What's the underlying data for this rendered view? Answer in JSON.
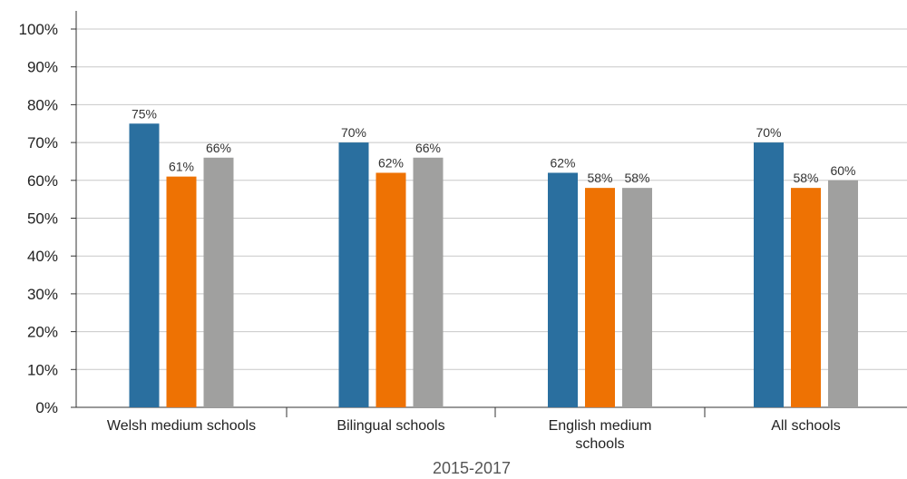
{
  "chart_data": {
    "type": "bar",
    "categories": [
      [
        "Welsh medium schools"
      ],
      [
        "Bilingual schools"
      ],
      [
        "English medium",
        "schools"
      ],
      [
        "All schools"
      ]
    ],
    "series": [
      {
        "values": [
          75,
          70,
          62,
          70
        ],
        "labels": [
          "75%",
          "70%",
          "62%",
          "70%"
        ],
        "color": "#2a6f9f"
      },
      {
        "values": [
          61,
          62,
          58,
          58
        ],
        "labels": [
          "61%",
          "62%",
          "58%",
          "58%"
        ],
        "color": "#ee7203"
      },
      {
        "values": [
          66,
          66,
          58,
          60
        ],
        "labels": [
          "66%",
          "66%",
          "58%",
          "60%"
        ],
        "color": "#a0a09f"
      }
    ],
    "xlabel": "2015-2017",
    "ylabel": "",
    "ylim": [
      0,
      100
    ],
    "yticks": [
      "0%",
      "10%",
      "20%",
      "30%",
      "40%",
      "50%",
      "60%",
      "70%",
      "80%",
      "90%",
      "100%"
    ],
    "grid": true,
    "gridColor": "#c8c8c8",
    "axisColor": "#333333"
  }
}
